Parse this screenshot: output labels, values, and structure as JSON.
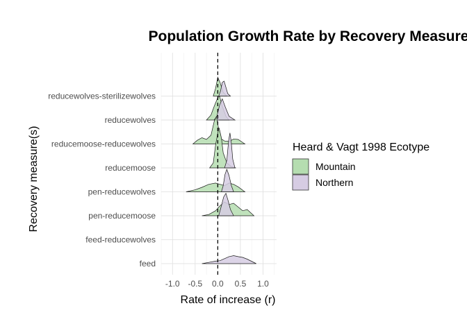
{
  "chart_data": {
    "type": "ridgeline",
    "title": "Population Growth Rate by Recovery Measure",
    "xlabel": "Rate of increase (r)",
    "ylabel": "Recovery measure(s)",
    "xlim": [
      -1.25,
      1.3
    ],
    "x_ticks": [
      "-1.0",
      "-0.5",
      "0.0",
      "0.5",
      "1.0"
    ],
    "x_tick_values": [
      -1.0,
      -0.5,
      0.0,
      0.5,
      1.0
    ],
    "reference_line_x": 0,
    "grid": true,
    "legend": {
      "title": "Heard & Vagt 1998 Ecotype",
      "placement": "right",
      "entries": [
        {
          "name": "Mountain",
          "color": "#b5ddb0"
        },
        {
          "name": "Northern",
          "color": "#d6cce3"
        }
      ]
    },
    "categories": [
      "feed",
      "feed-reducewolves",
      "pen-reducemoose",
      "pen-reducewolves",
      "reducemoose",
      "reducemoose-reducewolves",
      "reducewolves",
      "reducewolves-sterilizewolves"
    ],
    "series": [
      {
        "name": "Mountain",
        "color": "#b5ddb0",
        "densities": {
          "pen-reducemoose": [
            [
              -0.35,
              0
            ],
            [
              -0.2,
              0.05
            ],
            [
              -0.05,
              0.2
            ],
            [
              0.05,
              0.4
            ],
            [
              0.15,
              0.55
            ],
            [
              0.25,
              0.45
            ],
            [
              0.35,
              0.5
            ],
            [
              0.45,
              0.35
            ],
            [
              0.55,
              0.2
            ],
            [
              0.65,
              0.25
            ],
            [
              0.8,
              0
            ]
          ],
          "pen-reducewolves": [
            [
              -0.7,
              0
            ],
            [
              -0.5,
              0.08
            ],
            [
              -0.35,
              0.18
            ],
            [
              -0.2,
              0.3
            ],
            [
              -0.05,
              0.35
            ],
            [
              0.05,
              0.3
            ],
            [
              0.15,
              0.25
            ],
            [
              0.25,
              0.35
            ],
            [
              0.35,
              0.3
            ],
            [
              0.45,
              0.2
            ],
            [
              0.6,
              0
            ]
          ],
          "reducemoose": [
            [
              -0.18,
              0
            ],
            [
              -0.1,
              0.2
            ],
            [
              -0.05,
              0.9
            ],
            [
              0.0,
              1.4
            ],
            [
              0.03,
              1.6
            ],
            [
              0.08,
              1.2
            ],
            [
              0.12,
              0.6
            ],
            [
              0.2,
              0.2
            ],
            [
              0.3,
              0.05
            ],
            [
              0.4,
              0
            ]
          ],
          "reducemoose-reducewolves": [
            [
              -0.55,
              0
            ],
            [
              -0.45,
              0.15
            ],
            [
              -0.35,
              0.25
            ],
            [
              -0.25,
              0.18
            ],
            [
              -0.15,
              0.35
            ],
            [
              -0.08,
              0.9
            ],
            [
              -0.03,
              1.1
            ],
            [
              0.02,
              0.6
            ],
            [
              0.08,
              0.2
            ],
            [
              0.15,
              0.12
            ],
            [
              0.25,
              0.1
            ],
            [
              0.35,
              0.2
            ],
            [
              0.45,
              0.18
            ],
            [
              0.6,
              0
            ]
          ],
          "reducewolves": [
            [
              -0.25,
              0
            ],
            [
              -0.15,
              0.2
            ],
            [
              -0.08,
              0.55
            ],
            [
              0.0,
              0.9
            ],
            [
              0.04,
              0.95
            ],
            [
              0.1,
              0.55
            ],
            [
              0.18,
              0.15
            ],
            [
              0.25,
              0
            ]
          ],
          "reducewolves-sterilizewolves": [
            [
              -0.1,
              0
            ],
            [
              -0.05,
              0.3
            ],
            [
              0.0,
              0.75
            ],
            [
              0.05,
              0.55
            ],
            [
              0.12,
              0.15
            ],
            [
              0.2,
              0
            ]
          ]
        }
      },
      {
        "name": "Northern",
        "color": "#d6cce3",
        "densities": {
          "feed": [
            [
              -0.35,
              0
            ],
            [
              -0.2,
              0.05
            ],
            [
              -0.05,
              0.1
            ],
            [
              0.05,
              0.12
            ],
            [
              0.15,
              0.2
            ],
            [
              0.25,
              0.28
            ],
            [
              0.35,
              0.32
            ],
            [
              0.45,
              0.28
            ],
            [
              0.55,
              0.25
            ],
            [
              0.65,
              0.18
            ],
            [
              0.85,
              0
            ]
          ],
          "pen-reducemoose": [
            [
              0.02,
              0
            ],
            [
              0.08,
              0.4
            ],
            [
              0.13,
              0.75
            ],
            [
              0.18,
              0.9
            ],
            [
              0.23,
              0.6
            ],
            [
              0.28,
              0.25
            ],
            [
              0.35,
              0
            ]
          ],
          "pen-reducewolves": [
            [
              0.08,
              0
            ],
            [
              0.12,
              0.25
            ],
            [
              0.16,
              0.7
            ],
            [
              0.2,
              0.9
            ],
            [
              0.25,
              0.65
            ],
            [
              0.3,
              0.25
            ],
            [
              0.35,
              0
            ]
          ],
          "reducemoose": [
            [
              0.15,
              0
            ],
            [
              0.2,
              0.3
            ],
            [
              0.24,
              1.1
            ],
            [
              0.27,
              1.4
            ],
            [
              0.3,
              1.0
            ],
            [
              0.33,
              0.35
            ],
            [
              0.38,
              0
            ]
          ],
          "reducewolves": [
            [
              -0.08,
              0
            ],
            [
              -0.02,
              0.15
            ],
            [
              0.04,
              0.6
            ],
            [
              0.1,
              0.85
            ],
            [
              0.16,
              0.55
            ],
            [
              0.25,
              0.15
            ],
            [
              0.38,
              0
            ]
          ],
          "reducewolves-sterilizewolves": [
            [
              0.02,
              0
            ],
            [
              0.06,
              0.2
            ],
            [
              0.1,
              0.55
            ],
            [
              0.14,
              0.6
            ],
            [
              0.18,
              0.35
            ],
            [
              0.22,
              0.1
            ],
            [
              0.28,
              0
            ]
          ]
        }
      }
    ]
  }
}
